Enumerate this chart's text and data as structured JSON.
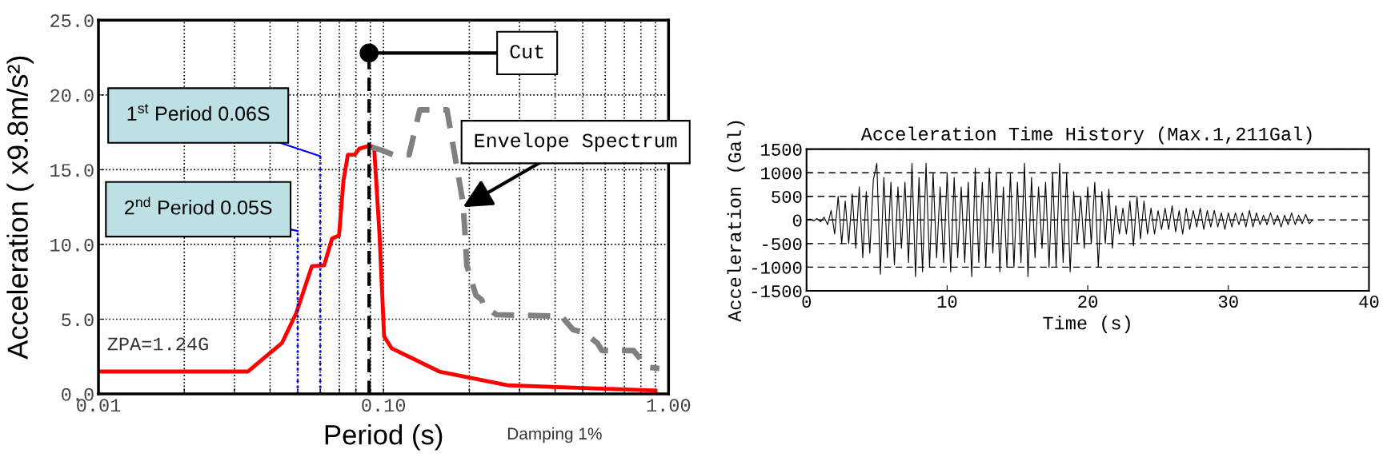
{
  "chart_data": [
    {
      "type": "line",
      "xlabel": "Period (s)",
      "ylabel": "Acceleration ( x9.8m/s²)",
      "log": "x",
      "grid": true,
      "xlim": [
        0.01,
        1.0
      ],
      "ylim": [
        0,
        25
      ],
      "xticks": [
        {
          "value": 0.01,
          "label": "0.01"
        },
        {
          "value": 0.02,
          "label": null
        },
        {
          "value": 0.03,
          "label": null
        },
        {
          "value": 0.04,
          "label": null
        },
        {
          "value": 0.05,
          "label": null
        },
        {
          "value": 0.06,
          "label": null
        },
        {
          "value": 0.07,
          "label": null
        },
        {
          "value": 0.08,
          "label": null
        },
        {
          "value": 0.09,
          "label": null
        },
        {
          "value": 0.1,
          "label": "0.10"
        },
        {
          "value": 0.2,
          "label": null
        },
        {
          "value": 0.3,
          "label": null
        },
        {
          "value": 0.4,
          "label": null
        },
        {
          "value": 0.5,
          "label": null
        },
        {
          "value": 0.6,
          "label": null
        },
        {
          "value": 0.7,
          "label": null
        },
        {
          "value": 0.8,
          "label": null
        },
        {
          "value": 0.9,
          "label": null
        },
        {
          "value": 1.0,
          "label": "1.00"
        }
      ],
      "yticks": [
        {
          "value": 0,
          "label": "0.0"
        },
        {
          "value": 5,
          "label": "5.0"
        },
        {
          "value": 10,
          "label": "10.0"
        },
        {
          "value": 15,
          "label": "15.0"
        },
        {
          "value": 20,
          "label": "20.0"
        },
        {
          "value": 25,
          "label": "25.0"
        }
      ],
      "series": [
        {
          "color": "#ff0000",
          "line_style": "solid",
          "x": [
            0.01,
            0.0334,
            0.044,
            0.0494,
            0.0561,
            0.0619,
            0.066,
            0.0698,
            0.0724,
            0.075,
            0.0792,
            0.0822,
            0.0891,
            0.0927,
            0.0968,
            0.1005,
            0.1067,
            0.157,
            0.272,
            0.9
          ],
          "values": [
            1.5,
            1.5,
            3.4,
            5.4,
            8.55,
            8.6,
            10.4,
            10.6,
            14.3,
            16.0,
            16.0,
            16.4,
            16.6,
            16.5,
            10.7,
            3.85,
            3.06,
            1.5,
            0.58,
            0.23
          ]
        },
        {
          "color": "#808080",
          "line_style": "dashed",
          "x": [
            0.091,
            0.0986,
            0.108,
            0.123,
            0.134,
            0.167,
            0.19,
            0.193,
            0.196,
            0.211,
            0.221,
            0.225,
            0.249,
            0.421,
            0.462,
            0.505,
            0.563,
            0.584,
            0.754,
            0.84,
            0.929
          ],
          "values": [
            16.5,
            16.3,
            16.0,
            16.0,
            19.0,
            19.0,
            12.8,
            10.9,
            8.6,
            6.6,
            6.3,
            5.9,
            5.3,
            5.2,
            4.3,
            4.1,
            3.4,
            2.9,
            2.9,
            1.8,
            1.7
          ]
        },
        {
          "color": "#0000ff",
          "line_style": "dotted",
          "x": [
            0.05,
            0.05
          ],
          "values": [
            0,
            10.9
          ]
        },
        {
          "color": "#0000ff",
          "line_style": "dotted",
          "x": [
            0.06,
            0.06
          ],
          "values": [
            0,
            15.9
          ]
        },
        {
          "color": "#000000",
          "line_style": "dashed",
          "x": [
            0.089,
            0.089
          ],
          "values": [
            0,
            22.8
          ]
        }
      ],
      "annotations": [
        {
          "text": "1$^{st}$ Period 0.06S",
          "x": 0.06,
          "y": 15.9
        },
        {
          "text": "2$^{nd}$ Period 0.05S",
          "x": 0.05,
          "y": 10.9
        },
        {
          "text": "Cut",
          "x": 0.089,
          "y": 22.8
        },
        {
          "text": "Envelope Spectrum",
          "x": 0.19,
          "y": 12.5
        },
        "ZPA=1.24G",
        "Damping 1%"
      ]
    },
    {
      "type": "line",
      "title": "Acceleration Time History (Max.1,211Gal)",
      "xlabel": "Time (s)",
      "ylabel": "Acceleration (Gal)",
      "grid": "y",
      "xlim": [
        0,
        40
      ],
      "ylim": [
        -1500,
        1500
      ],
      "xticks": [
        0,
        10,
        20,
        30,
        40
      ],
      "yticks": [
        -1500,
        -1000,
        -500,
        0,
        500,
        1000,
        1500
      ],
      "series": [
        {
          "color": "#000000",
          "line_style": "solid",
          "x": [
            0,
            0.25,
            0.5,
            0.75,
            1.0,
            1.25,
            1.5,
            1.75,
            2.0,
            2.25,
            2.5,
            2.75,
            3.0,
            3.25,
            3.5,
            3.75,
            4.0,
            4.25,
            4.5,
            4.75,
            5.0,
            5.25,
            5.5,
            5.75,
            6.0,
            6.25,
            6.5,
            6.75,
            7.0,
            7.25,
            7.5,
            7.75,
            8.0,
            8.25,
            8.5,
            8.75,
            9.0,
            9.25,
            9.5,
            9.75,
            10.0,
            10.25,
            10.5,
            10.75,
            11.0,
            11.25,
            11.5,
            11.75,
            12.0,
            12.25,
            12.5,
            12.75,
            13.0,
            13.25,
            13.5,
            13.75,
            14.0,
            14.25,
            14.5,
            14.75,
            15.0,
            15.25,
            15.5,
            15.75,
            16.0,
            16.25,
            16.5,
            16.75,
            17.0,
            17.25,
            17.5,
            17.75,
            18.0,
            18.25,
            18.5,
            18.75,
            19.0,
            19.25,
            19.5,
            19.75,
            20.0,
            20.25,
            20.5,
            20.75,
            21.0,
            21.25,
            21.5,
            21.75,
            22.0,
            22.25,
            22.5,
            22.75,
            23.0,
            23.25,
            23.5,
            23.75,
            24.0,
            24.25,
            24.5,
            24.75,
            25.0,
            25.25,
            25.5,
            25.75,
            26.0,
            26.25,
            26.5,
            26.75,
            27.0,
            27.25,
            27.5,
            27.75,
            28.0,
            28.25,
            28.5,
            28.75,
            29.0,
            29.25,
            29.5,
            29.75,
            30.0,
            30.25,
            30.5,
            30.75,
            31.0,
            31.25,
            31.5,
            31.75,
            32.0,
            32.25,
            32.5,
            32.75,
            33.0,
            33.25,
            33.5,
            33.75,
            34.0,
            34.25,
            34.5,
            34.75,
            35.0,
            35.25,
            35.5,
            35.75,
            36.0
          ],
          "values": [
            0,
            20,
            -20,
            30,
            -40,
            60,
            -100,
            200,
            -300,
            500,
            -500,
            400,
            -500,
            550,
            -600,
            700,
            -800,
            600,
            -700,
            850,
            1200,
            -1150,
            900,
            -800,
            800,
            -950,
            700,
            -600,
            800,
            -900,
            1200,
            -1200,
            900,
            -1100,
            1200,
            -1000,
            1000,
            -800,
            700,
            -900,
            1000,
            -1100,
            900,
            -800,
            700,
            -900,
            800,
            -1200,
            1100,
            -900,
            800,
            -1000,
            1100,
            -700,
            1000,
            -1100,
            700,
            -1000,
            1000,
            -1000,
            800,
            -900,
            1200,
            -1200,
            900,
            -800,
            700,
            -600,
            800,
            -1000,
            1000,
            -1000,
            1200,
            -900,
            1000,
            -1100,
            600,
            -500,
            500,
            -600,
            700,
            -500,
            800,
            -1000,
            600,
            -500,
            650,
            -600,
            300,
            -300,
            250,
            -300,
            400,
            -550,
            500,
            -400,
            400,
            -300,
            250,
            -300,
            200,
            -200,
            250,
            -200,
            300,
            -250,
            200,
            -300,
            250,
            -200,
            200,
            -150,
            250,
            -200,
            200,
            -150,
            200,
            -150,
            150,
            -200,
            150,
            -150,
            150,
            -100,
            150,
            -150,
            200,
            -150,
            150,
            -100,
            100,
            -100,
            150,
            -100,
            100,
            -150,
            100,
            -100,
            150,
            -100,
            100,
            -80,
            120,
            -80,
            0
          ]
        }
      ]
    }
  ]
}
